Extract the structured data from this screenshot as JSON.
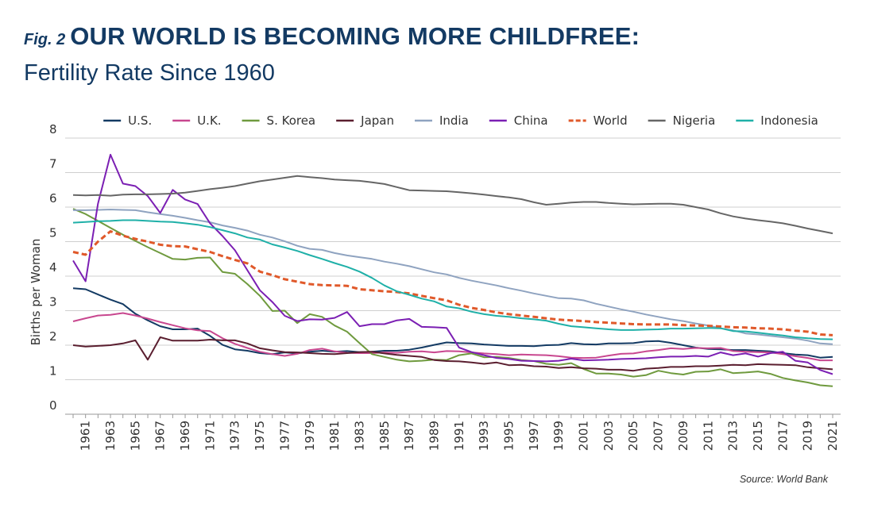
{
  "header": {
    "fig_label": "Fig. 2",
    "title": "OUR WORLD IS BECOMING MORE CHILDFREE:",
    "subtitle": "Fertility Rate Since 1960"
  },
  "source": "Source: World Bank",
  "chart_data": {
    "type": "line",
    "title": "OUR WORLD IS BECOMING MORE CHILDFREE: Fertility Rate Since 1960",
    "xlabel": "",
    "ylabel": "Births per Woman",
    "ylim": [
      0,
      8
    ],
    "yticks": [
      0,
      1,
      2,
      3,
      4,
      5,
      6,
      7,
      8
    ],
    "grid": true,
    "legend_position": "top",
    "xticks": [
      1961,
      1963,
      1965,
      1967,
      1969,
      1971,
      1973,
      1975,
      1977,
      1979,
      1981,
      1983,
      1985,
      1987,
      1989,
      1991,
      1993,
      1995,
      1997,
      1999,
      2001,
      2003,
      2005,
      2007,
      2009,
      2011,
      2013,
      2015,
      2017,
      2019,
      2021
    ],
    "x": [
      1960,
      1961,
      1962,
      1963,
      1964,
      1965,
      1966,
      1967,
      1968,
      1969,
      1970,
      1971,
      1972,
      1973,
      1974,
      1975,
      1976,
      1977,
      1978,
      1979,
      1980,
      1981,
      1982,
      1983,
      1984,
      1985,
      1986,
      1987,
      1988,
      1989,
      1990,
      1991,
      1992,
      1993,
      1994,
      1995,
      1996,
      1997,
      1998,
      1999,
      2000,
      2001,
      2002,
      2003,
      2004,
      2005,
      2006,
      2007,
      2008,
      2009,
      2010,
      2011,
      2012,
      2013,
      2014,
      2015,
      2016,
      2017,
      2018,
      2019,
      2020,
      2021
    ],
    "series": [
      {
        "name": "U.S.",
        "color": "#133a63",
        "dashed": false,
        "values": [
          3.65,
          3.62,
          3.47,
          3.32,
          3.19,
          2.91,
          2.72,
          2.55,
          2.46,
          2.46,
          2.48,
          2.27,
          2.01,
          1.88,
          1.84,
          1.77,
          1.74,
          1.79,
          1.76,
          1.81,
          1.84,
          1.81,
          1.83,
          1.8,
          1.81,
          1.84,
          1.84,
          1.87,
          1.93,
          2.01,
          2.08,
          2.06,
          2.05,
          2.02,
          2.0,
          1.98,
          1.98,
          1.97,
          2.0,
          2.01,
          2.06,
          2.03,
          2.02,
          2.05,
          2.05,
          2.06,
          2.11,
          2.12,
          2.07,
          2.0,
          1.93,
          1.89,
          1.88,
          1.86,
          1.86,
          1.84,
          1.82,
          1.77,
          1.73,
          1.71,
          1.64,
          1.66
        ]
      },
      {
        "name": "U.K.",
        "color": "#c8478f",
        "dashed": false,
        "values": [
          2.69,
          2.78,
          2.86,
          2.88,
          2.93,
          2.86,
          2.77,
          2.67,
          2.58,
          2.49,
          2.43,
          2.41,
          2.2,
          2.04,
          1.92,
          1.81,
          1.74,
          1.69,
          1.75,
          1.86,
          1.9,
          1.82,
          1.78,
          1.77,
          1.77,
          1.79,
          1.78,
          1.81,
          1.82,
          1.79,
          1.83,
          1.82,
          1.79,
          1.76,
          1.74,
          1.71,
          1.73,
          1.72,
          1.71,
          1.68,
          1.64,
          1.63,
          1.64,
          1.7,
          1.75,
          1.76,
          1.82,
          1.86,
          1.91,
          1.89,
          1.92,
          1.91,
          1.92,
          1.83,
          1.81,
          1.8,
          1.79,
          1.74,
          1.68,
          1.63,
          1.56,
          1.56
        ]
      },
      {
        "name": "S. Korea",
        "color": "#6f9a3e",
        "dashed": false,
        "values": [
          5.95,
          5.8,
          5.6,
          5.4,
          5.2,
          5.02,
          4.84,
          4.67,
          4.5,
          4.48,
          4.53,
          4.54,
          4.12,
          4.07,
          3.77,
          3.43,
          2.99,
          3.0,
          2.64,
          2.9,
          2.82,
          2.57,
          2.39,
          2.06,
          1.74,
          1.66,
          1.58,
          1.53,
          1.55,
          1.58,
          1.57,
          1.71,
          1.76,
          1.65,
          1.66,
          1.63,
          1.57,
          1.54,
          1.46,
          1.43,
          1.48,
          1.31,
          1.18,
          1.18,
          1.15,
          1.09,
          1.13,
          1.26,
          1.19,
          1.15,
          1.23,
          1.24,
          1.3,
          1.19,
          1.21,
          1.24,
          1.17,
          1.05,
          0.98,
          0.92,
          0.84,
          0.81
        ]
      },
      {
        "name": "Japan",
        "color": "#5a1e2f",
        "dashed": false,
        "values": [
          2.0,
          1.96,
          1.98,
          2.0,
          2.05,
          2.14,
          1.58,
          2.23,
          2.13,
          2.13,
          2.13,
          2.16,
          2.14,
          2.14,
          2.05,
          1.91,
          1.85,
          1.8,
          1.79,
          1.77,
          1.75,
          1.74,
          1.77,
          1.8,
          1.81,
          1.76,
          1.72,
          1.69,
          1.66,
          1.57,
          1.54,
          1.53,
          1.5,
          1.46,
          1.5,
          1.42,
          1.43,
          1.39,
          1.38,
          1.34,
          1.36,
          1.33,
          1.32,
          1.29,
          1.29,
          1.26,
          1.32,
          1.34,
          1.37,
          1.37,
          1.39,
          1.39,
          1.41,
          1.43,
          1.42,
          1.45,
          1.44,
          1.43,
          1.42,
          1.36,
          1.33,
          1.3
        ]
      },
      {
        "name": "India",
        "color": "#8fa3c0",
        "dashed": false,
        "values": [
          5.91,
          5.91,
          5.92,
          5.93,
          5.92,
          5.91,
          5.85,
          5.8,
          5.75,
          5.69,
          5.62,
          5.56,
          5.47,
          5.4,
          5.32,
          5.2,
          5.12,
          5.01,
          4.88,
          4.79,
          4.76,
          4.67,
          4.6,
          4.55,
          4.5,
          4.42,
          4.36,
          4.29,
          4.2,
          4.11,
          4.05,
          3.95,
          3.87,
          3.8,
          3.73,
          3.65,
          3.58,
          3.5,
          3.43,
          3.36,
          3.35,
          3.3,
          3.2,
          3.12,
          3.04,
          2.97,
          2.89,
          2.82,
          2.75,
          2.7,
          2.63,
          2.57,
          2.49,
          2.43,
          2.34,
          2.31,
          2.27,
          2.23,
          2.19,
          2.13,
          2.05,
          2.03
        ]
      },
      {
        "name": "China",
        "color": "#7b1fb3",
        "dashed": false,
        "values": [
          4.45,
          3.85,
          6.1,
          7.52,
          6.68,
          6.61,
          6.32,
          5.83,
          6.5,
          6.22,
          6.09,
          5.53,
          5.16,
          4.75,
          4.17,
          3.59,
          3.25,
          2.85,
          2.7,
          2.75,
          2.74,
          2.79,
          2.96,
          2.55,
          2.61,
          2.61,
          2.72,
          2.76,
          2.53,
          2.52,
          2.5,
          1.93,
          1.8,
          1.71,
          1.63,
          1.6,
          1.55,
          1.54,
          1.53,
          1.55,
          1.61,
          1.56,
          1.57,
          1.58,
          1.6,
          1.61,
          1.62,
          1.65,
          1.67,
          1.67,
          1.69,
          1.67,
          1.79,
          1.71,
          1.76,
          1.67,
          1.77,
          1.81,
          1.55,
          1.5,
          1.28,
          1.16
        ]
      },
      {
        "name": "World",
        "color": "#e0592a",
        "dashed": true,
        "values": [
          4.7,
          4.62,
          5.0,
          5.3,
          5.17,
          5.08,
          5.0,
          4.91,
          4.87,
          4.86,
          4.78,
          4.7,
          4.58,
          4.47,
          4.37,
          4.13,
          4.03,
          3.91,
          3.84,
          3.77,
          3.74,
          3.73,
          3.72,
          3.62,
          3.59,
          3.56,
          3.54,
          3.5,
          3.43,
          3.36,
          3.3,
          3.17,
          3.08,
          3.02,
          2.95,
          2.9,
          2.86,
          2.82,
          2.78,
          2.74,
          2.72,
          2.7,
          2.67,
          2.65,
          2.63,
          2.61,
          2.6,
          2.6,
          2.6,
          2.58,
          2.57,
          2.56,
          2.54,
          2.52,
          2.51,
          2.49,
          2.48,
          2.46,
          2.42,
          2.39,
          2.31,
          2.29
        ]
      },
      {
        "name": "Nigeria",
        "color": "#666666",
        "dashed": false,
        "values": [
          6.35,
          6.34,
          6.35,
          6.33,
          6.36,
          6.37,
          6.37,
          6.38,
          6.39,
          6.42,
          6.47,
          6.52,
          6.56,
          6.61,
          6.68,
          6.75,
          6.8,
          6.85,
          6.9,
          6.87,
          6.84,
          6.8,
          6.78,
          6.76,
          6.72,
          6.67,
          6.58,
          6.49,
          6.48,
          6.47,
          6.46,
          6.43,
          6.4,
          6.36,
          6.32,
          6.28,
          6.23,
          6.14,
          6.07,
          6.1,
          6.13,
          6.15,
          6.15,
          6.12,
          6.1,
          6.08,
          6.09,
          6.1,
          6.1,
          6.07,
          6.0,
          5.93,
          5.82,
          5.73,
          5.67,
          5.62,
          5.58,
          5.53,
          5.46,
          5.38,
          5.31,
          5.24
        ]
      },
      {
        "name": "Indonesia",
        "color": "#1fb0a8",
        "dashed": false,
        "values": [
          5.55,
          5.57,
          5.59,
          5.6,
          5.62,
          5.62,
          5.6,
          5.58,
          5.57,
          5.53,
          5.49,
          5.42,
          5.33,
          5.24,
          5.12,
          5.06,
          4.92,
          4.83,
          4.73,
          4.61,
          4.5,
          4.38,
          4.27,
          4.13,
          3.95,
          3.73,
          3.56,
          3.46,
          3.35,
          3.27,
          3.12,
          3.07,
          2.97,
          2.9,
          2.85,
          2.82,
          2.78,
          2.75,
          2.71,
          2.62,
          2.55,
          2.52,
          2.49,
          2.46,
          2.44,
          2.44,
          2.45,
          2.46,
          2.48,
          2.48,
          2.49,
          2.5,
          2.49,
          2.41,
          2.4,
          2.36,
          2.32,
          2.28,
          2.23,
          2.2,
          2.18,
          2.17
        ]
      }
    ]
  }
}
